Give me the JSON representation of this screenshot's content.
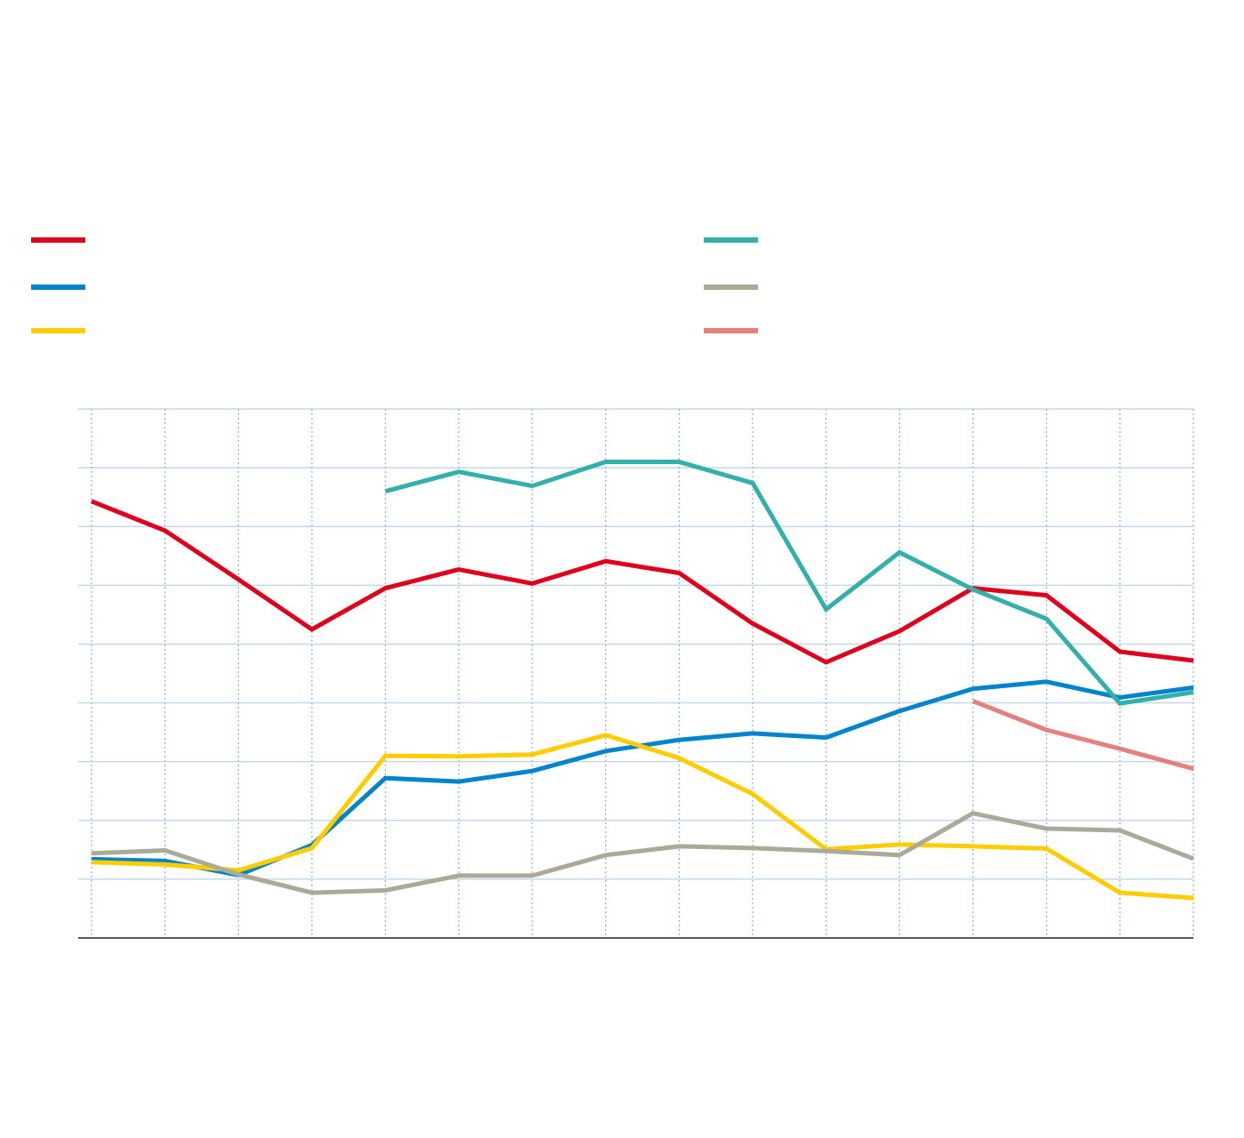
{
  "chart_data": {
    "type": "line",
    "title": "",
    "xlabel": "",
    "ylabel": "",
    "x": [
      1,
      2,
      3,
      4,
      5,
      6,
      7,
      8,
      9,
      10,
      11,
      12,
      13,
      14,
      15,
      16
    ],
    "xlim": [
      0.8,
      16
    ],
    "ylim": [
      0,
      9
    ],
    "grid": true,
    "legend_position": "top",
    "colors": [
      "#e0001b",
      "#0084cc",
      "#ffcc00",
      "#33b0aa",
      "#aaaa99",
      "#e6807e"
    ],
    "series": [
      {
        "color": "#e0001b",
        "values": [
          7.43,
          6.93,
          6.1,
          5.25,
          5.95,
          6.27,
          6.03,
          6.41,
          6.21,
          5.35,
          4.69,
          5.22,
          5.95,
          5.83,
          4.87,
          4.72
        ]
      },
      {
        "color": "#0084cc",
        "values": [
          1.34,
          1.31,
          1.07,
          1.58,
          2.72,
          2.66,
          2.84,
          3.18,
          3.37,
          3.48,
          3.41,
          3.86,
          4.24,
          4.36,
          4.09,
          4.26
        ]
      },
      {
        "color": "#ffcc00",
        "values": [
          1.29,
          1.25,
          1.15,
          1.53,
          3.1,
          3.09,
          3.12,
          3.45,
          3.06,
          2.45,
          1.51,
          1.59,
          1.56,
          1.52,
          0.77,
          0.68
        ]
      },
      {
        "color": "#33b0aa",
        "values": [
          null,
          null,
          null,
          null,
          7.6,
          7.93,
          7.69,
          8.1,
          8.1,
          7.74,
          5.59,
          6.56,
          5.93,
          5.43,
          3.99,
          4.18
        ]
      },
      {
        "color": "#aaaa99",
        "values": [
          1.44,
          1.49,
          1.08,
          0.77,
          0.81,
          1.06,
          1.06,
          1.41,
          1.56,
          1.53,
          1.48,
          1.41,
          2.12,
          1.86,
          1.83,
          1.35
        ]
      },
      {
        "color": "#e6807e",
        "values": [
          null,
          null,
          null,
          null,
          null,
          null,
          null,
          null,
          null,
          null,
          null,
          null,
          4.03,
          3.54,
          3.22,
          2.88
        ]
      }
    ]
  }
}
